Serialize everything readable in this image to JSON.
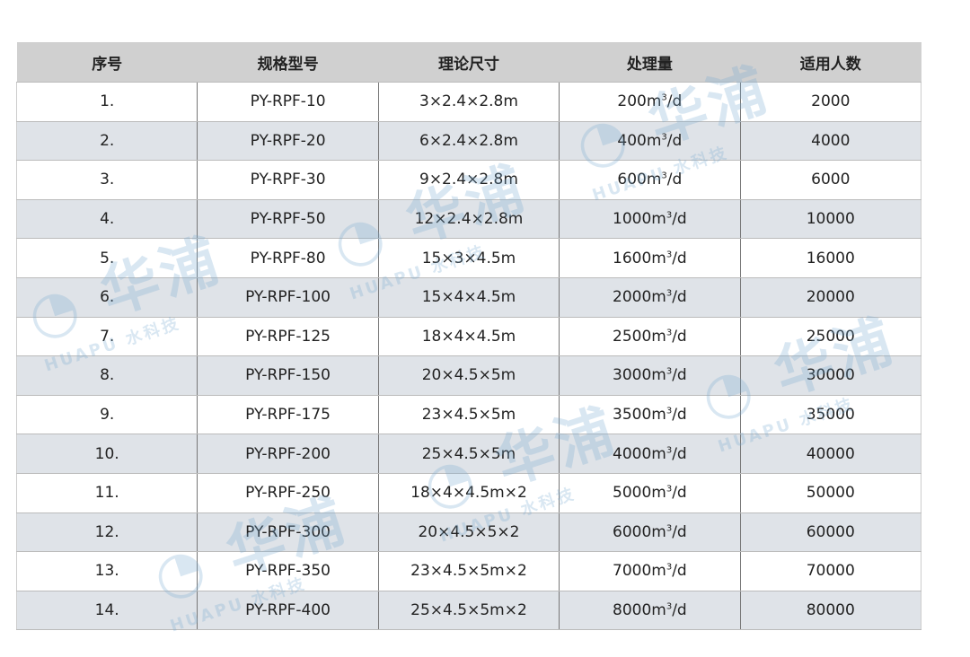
{
  "table": {
    "headers": [
      "序号",
      "规格型号",
      "理论尺寸",
      "处理量",
      "适用人数"
    ],
    "rows": [
      {
        "no": "1.",
        "model": "PY-RPF-10",
        "size": "3×2.4×2.8m",
        "capacity": "200",
        "unit": "m³/d",
        "people": "2000"
      },
      {
        "no": "2.",
        "model": "PY-RPF-20",
        "size": "6×2.4×2.8m",
        "capacity": "400",
        "unit": "m³/d",
        "people": "4000"
      },
      {
        "no": "3.",
        "model": "PY-RPF-30",
        "size": "9×2.4×2.8m",
        "capacity": "600",
        "unit": "m³/d",
        "people": "6000"
      },
      {
        "no": "4.",
        "model": "PY-RPF-50",
        "size": "12×2.4×2.8m",
        "capacity": "1000",
        "unit": "m³/d",
        "people": "10000"
      },
      {
        "no": "5.",
        "model": "PY-RPF-80",
        "size": "15×3×4.5m",
        "capacity": "1600",
        "unit": "m³/d",
        "people": "16000"
      },
      {
        "no": "6.",
        "model": "PY-RPF-100",
        "size": "15×4×4.5m",
        "capacity": "2000",
        "unit": "m³/d",
        "people": "20000"
      },
      {
        "no": "7.",
        "model": "PY-RPF-125",
        "size": "18×4×4.5m",
        "capacity": "2500",
        "unit": "m³/d",
        "people": "25000"
      },
      {
        "no": "8.",
        "model": "PY-RPF-150",
        "size": "20×4.5×5m",
        "capacity": "3000",
        "unit": "m³/d",
        "people": "30000"
      },
      {
        "no": "9.",
        "model": "PY-RPF-175",
        "size": "23×4.5×5m",
        "capacity": "3500",
        "unit": "m³/d",
        "people": "35000"
      },
      {
        "no": "10.",
        "model": "PY-RPF-200",
        "size": "25×4.5×5m",
        "capacity": "4000",
        "unit": "m³/d",
        "people": "40000"
      },
      {
        "no": "11.",
        "model": "PY-RPF-250",
        "size": "18×4×4.5m×2",
        "capacity": "5000",
        "unit": "m³/d",
        "people": "50000"
      },
      {
        "no": "12.",
        "model": "PY-RPF-300",
        "size": "20×4.5×5×2",
        "capacity": "6000",
        "unit": "m³/d",
        "people": "60000"
      },
      {
        "no": "13.",
        "model": "PY-RPF-350",
        "size": "23×4.5×5m×2",
        "capacity": "7000",
        "unit": "m³/d",
        "people": "70000"
      },
      {
        "no": "14.",
        "model": "PY-RPF-400",
        "size": "25×4.5×5m×2",
        "capacity": "8000",
        "unit": "m³/d",
        "people": "80000"
      }
    ]
  },
  "watermark": {
    "brand": "华浦",
    "latin": "HUAPU",
    "tag": "水科技",
    "color": "#78aad2"
  }
}
